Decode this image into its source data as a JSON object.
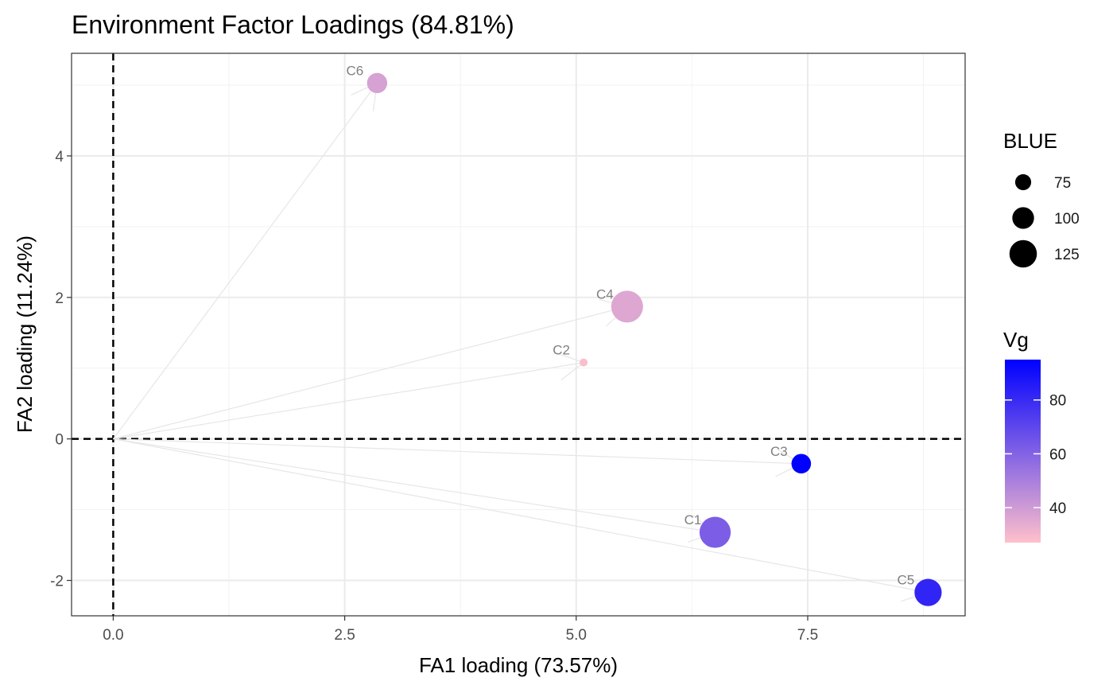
{
  "chart_data": {
    "type": "scatter",
    "title": "Environment Factor Loadings (84.81%)",
    "xlabel": "FA1 loading (73.57%)",
    "ylabel": "FA2 loading (11.24%)",
    "xlim": [
      -0.45,
      9.2
    ],
    "ylim": [
      -2.5,
      5.45
    ],
    "x_ticks": [
      {
        "value": 0.0,
        "label": "0.0"
      },
      {
        "value": 2.5,
        "label": "2.5"
      },
      {
        "value": 5.0,
        "label": "5.0"
      },
      {
        "value": 7.5,
        "label": "7.5"
      }
    ],
    "y_ticks": [
      {
        "value": -2,
        "label": "-2"
      },
      {
        "value": 0,
        "label": "0"
      },
      {
        "value": 2,
        "label": "2"
      },
      {
        "value": 4,
        "label": "4"
      }
    ],
    "grid": true,
    "reference_lines": {
      "x": 0,
      "y": 0,
      "style": "dashed"
    },
    "arrows_from_origin": true,
    "points": [
      {
        "label": "C1",
        "x": 6.5,
        "y": -1.32,
        "blue": 128,
        "vg": 62
      },
      {
        "label": "C2",
        "x": 5.08,
        "y": 1.08,
        "blue": 52,
        "vg": 28
      },
      {
        "label": "C3",
        "x": 7.43,
        "y": -0.35,
        "blue": 90,
        "vg": 95
      },
      {
        "label": "C4",
        "x": 5.55,
        "y": 1.87,
        "blue": 130,
        "vg": 36
      },
      {
        "label": "C5",
        "x": 8.8,
        "y": -2.17,
        "blue": 115,
        "vg": 82
      },
      {
        "label": "C6",
        "x": 2.85,
        "y": 5.03,
        "blue": 92,
        "vg": 38
      }
    ],
    "size_legend": {
      "title": "BLUE",
      "entries": [
        {
          "value": 75,
          "label": "75"
        },
        {
          "value": 100,
          "label": "100"
        },
        {
          "value": 125,
          "label": "125"
        }
      ]
    },
    "color_legend": {
      "title": "Vg",
      "range": [
        27,
        95
      ],
      "low_color": "#ffc0cb",
      "high_color": "#0000ff",
      "ticks": [
        {
          "value": 40,
          "label": "40"
        },
        {
          "value": 60,
          "label": "60"
        },
        {
          "value": 80,
          "label": "80"
        }
      ]
    },
    "colors": {
      "arrow": "#e6e6e6",
      "grid_major": "#ebebeb",
      "grid_minor": "#f2f2f2",
      "panel_border": "#333333",
      "reference_line": "#000000"
    }
  }
}
